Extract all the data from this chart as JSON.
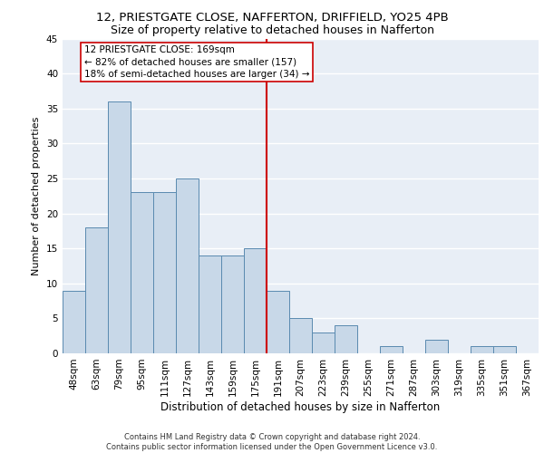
{
  "title_line1": "12, PRIESTGATE CLOSE, NAFFERTON, DRIFFIELD, YO25 4PB",
  "title_line2": "Size of property relative to detached houses in Nafferton",
  "xlabel": "Distribution of detached houses by size in Nafferton",
  "ylabel": "Number of detached properties",
  "footer_line1": "Contains HM Land Registry data © Crown copyright and database right 2024.",
  "footer_line2": "Contains public sector information licensed under the Open Government Licence v3.0.",
  "bins": [
    "48sqm",
    "63sqm",
    "79sqm",
    "95sqm",
    "111sqm",
    "127sqm",
    "143sqm",
    "159sqm",
    "175sqm",
    "191sqm",
    "207sqm",
    "223sqm",
    "239sqm",
    "255sqm",
    "271sqm",
    "287sqm",
    "303sqm",
    "319sqm",
    "335sqm",
    "351sqm",
    "367sqm"
  ],
  "values": [
    9,
    18,
    36,
    23,
    23,
    25,
    14,
    14,
    15,
    9,
    5,
    3,
    4,
    0,
    1,
    0,
    2,
    0,
    1,
    1,
    0
  ],
  "bar_color": "#c8d8e8",
  "bar_edge_color": "#5a8ab0",
  "vline_color": "#cc0000",
  "annotation_text": "12 PRIESTGATE CLOSE: 169sqm\n← 82% of detached houses are smaller (157)\n18% of semi-detached houses are larger (34) →",
  "annotation_box_color": "#ffffff",
  "annotation_box_edge": "#cc0000",
  "ylim": [
    0,
    45
  ],
  "yticks": [
    0,
    5,
    10,
    15,
    20,
    25,
    30,
    35,
    40,
    45
  ],
  "background_color": "#e8eef6",
  "grid_color": "#ffffff",
  "title1_fontsize": 9.5,
  "title2_fontsize": 9,
  "xlabel_fontsize": 8.5,
  "ylabel_fontsize": 8,
  "tick_fontsize": 7.5,
  "annotation_fontsize": 7.5,
  "footer_fontsize": 6
}
